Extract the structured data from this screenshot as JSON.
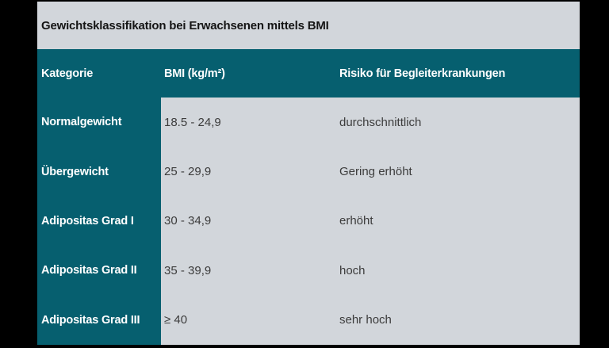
{
  "title": "Gewichtsklassifikation bei Erwachsenen mittels BMI",
  "colors": {
    "background": "#000000",
    "teal": "#065f6f",
    "light_gray": "#d2d6db",
    "header_text": "#ffffff",
    "body_text": "#3c3c3c",
    "title_text": "#151515"
  },
  "table": {
    "columns": [
      "Kategorie",
      "BMI (kg/m²)",
      "Risiko für Begleiterkrankungen"
    ],
    "rows": [
      {
        "kategorie": "Normalgewicht",
        "bmi": "18.5 - 24,9",
        "risiko": "durchschnittlich"
      },
      {
        "kategorie": "Übergewicht",
        "bmi": "25 - 29,9",
        "risiko": "Gering erhöht"
      },
      {
        "kategorie": "Adipositas Grad I",
        "bmi": "30 - 34,9",
        "risiko": "erhöht"
      },
      {
        "kategorie": "Adipositas Grad II",
        "bmi": "35 - 39,9",
        "risiko": "hoch"
      },
      {
        "kategorie": "Adipositas Grad III",
        "bmi": "≥ 40",
        "risiko": "sehr hoch"
      }
    ]
  },
  "chart_data": {
    "type": "table",
    "title": "Gewichtsklassifikation bei Erwachsenen mittels BMI",
    "columns": [
      "Kategorie",
      "BMI (kg/m²)",
      "Risiko für Begleiterkrankungen"
    ],
    "rows": [
      [
        "Normalgewicht",
        "18.5 - 24,9",
        "durchschnittlich"
      ],
      [
        "Übergewicht",
        "25 - 29,9",
        "Gering erhöht"
      ],
      [
        "Adipositas Grad I",
        "30 - 34,9",
        "erhöht"
      ],
      [
        "Adipositas Grad II",
        "35 - 39,9",
        "hoch"
      ],
      [
        "Adipositas Grad III",
        "≥ 40",
        "sehr hoch"
      ]
    ]
  }
}
